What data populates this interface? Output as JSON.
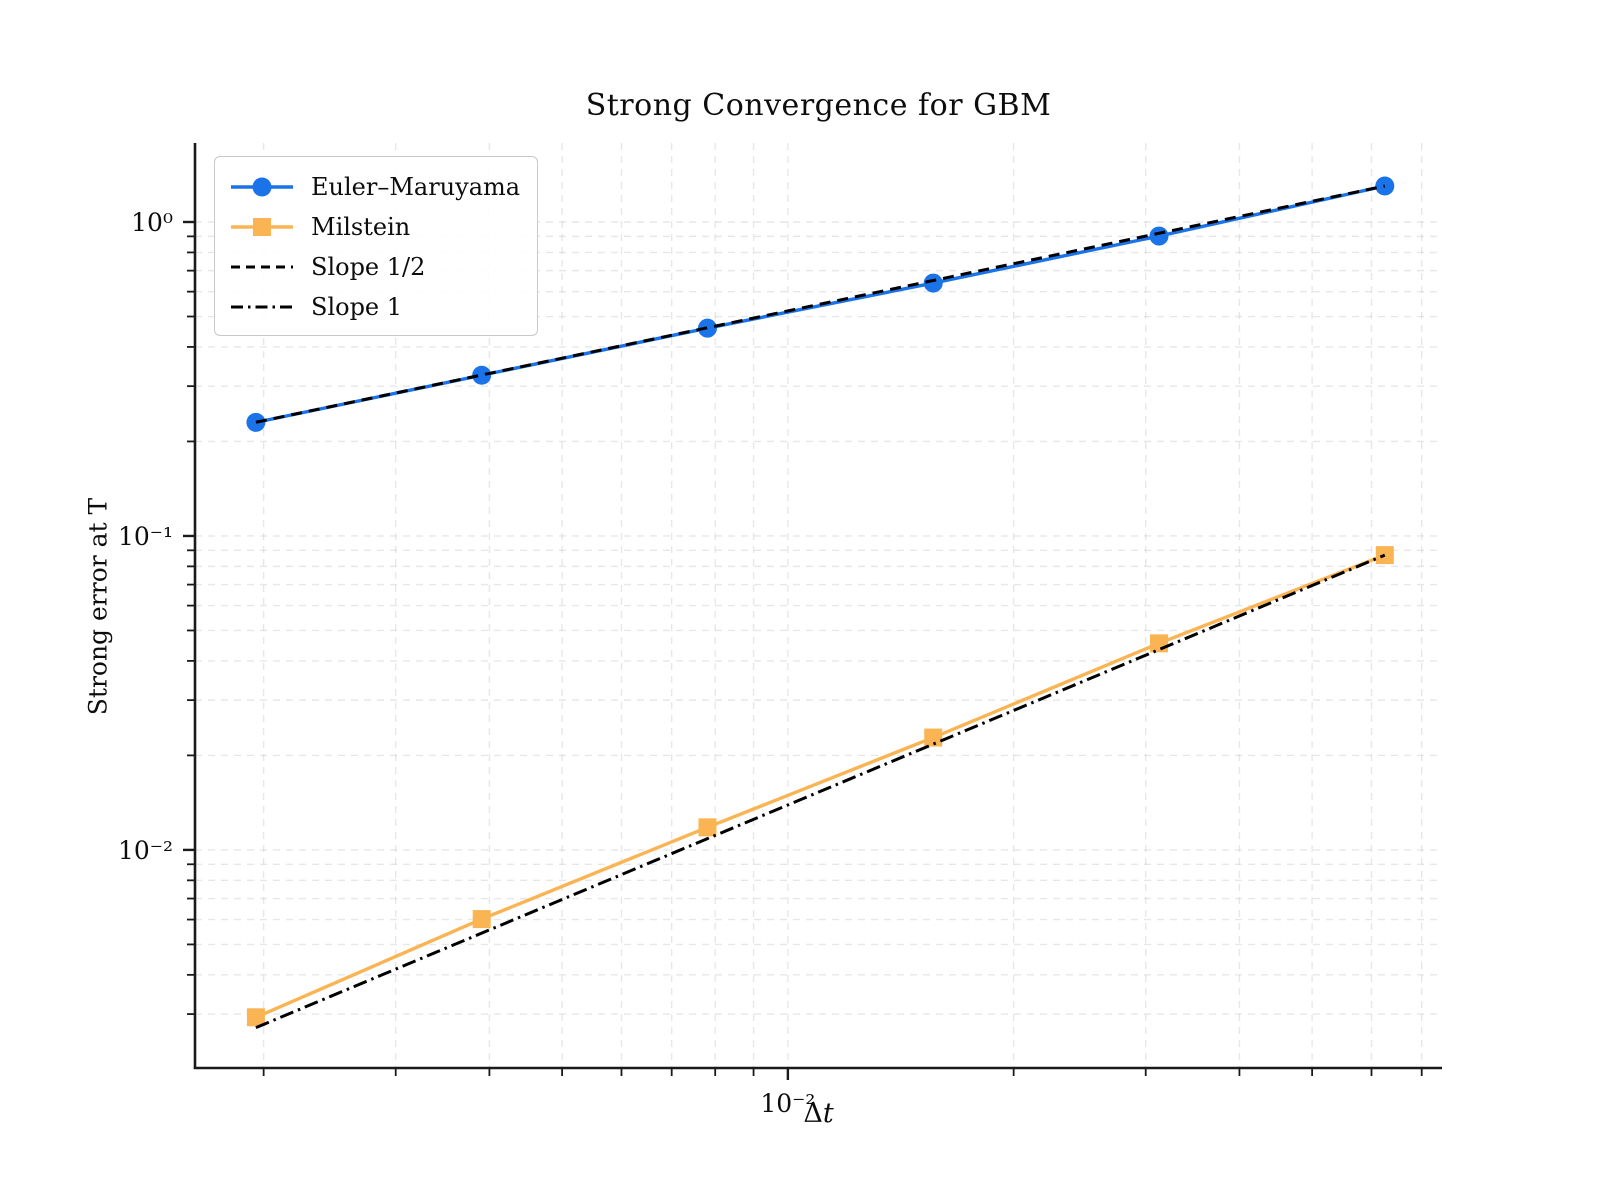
{
  "chart_data": {
    "type": "line",
    "title": "Strong Convergence for GBM",
    "xlabel": {
      "prefix": "Δ",
      "variable": "t"
    },
    "ylabel": "Strong error at T",
    "x_scale": "log",
    "y_scale": "log",
    "xlim": [
      0.00162,
      0.0745
    ],
    "ylim": [
      0.00202,
      1.785
    ],
    "grid": "both-dashed",
    "legend_position": "upper left",
    "x": [
      0.001953125,
      0.00390625,
      0.0078125,
      0.015625,
      0.03125,
      0.0625
    ],
    "series": [
      {
        "name": "Euler–Maruyama",
        "color": "#1a73e8",
        "marker": "circle",
        "line": "solid",
        "values": [
          0.23,
          0.325,
          0.459,
          0.639,
          0.902,
          1.302
        ]
      },
      {
        "name": "Milstein",
        "color": "#fbb454",
        "marker": "square",
        "line": "solid",
        "values": [
          0.00293,
          0.00602,
          0.0118,
          0.0228,
          0.0455,
          0.0869
        ]
      },
      {
        "name": "Slope 1/2",
        "color": "#000000",
        "marker": "none",
        "line": "dashed",
        "values": [
          0.2302,
          0.3256,
          0.4604,
          0.6511,
          0.9207,
          1.302
        ]
      },
      {
        "name": "Slope 1",
        "color": "#000000",
        "marker": "none",
        "line": "dashdot",
        "values": [
          0.002716,
          0.005431,
          0.010863,
          0.021725,
          0.04345,
          0.0869
        ]
      }
    ],
    "x_major_ticks": [
      {
        "value": 0.01,
        "label": "10⁻²"
      }
    ],
    "y_major_ticks": [
      {
        "value": 1,
        "label": "10⁰"
      },
      {
        "value": 0.1,
        "label": "10⁻¹"
      },
      {
        "value": 0.01,
        "label": "10⁻²"
      }
    ],
    "colors": {
      "spine": "#1a1a1a",
      "grid": "#c9cbd4",
      "text": "#0d0d0d"
    }
  }
}
